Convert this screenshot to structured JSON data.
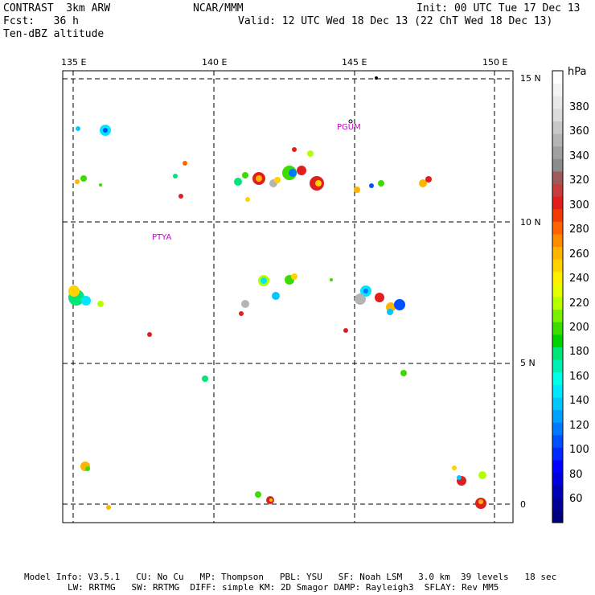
{
  "header": {
    "left_line1": "CONTRAST  3km ARW",
    "left_line2": "Fcst:   36 h",
    "left_line3": "Ten-dBZ altitude",
    "center_line1": "NCAR/MMM",
    "init_text": "Init: 00 UTC Tue 17 Dec 13",
    "valid_text": "Valid: 12 UTC Wed 18 Dec 13 (22 ChT Wed 18 Dec 13)"
  },
  "axes": {
    "lon_ticks": [
      "135 E",
      "140 E",
      "145 E",
      "150 E"
    ],
    "lat_ticks": [
      "15 N",
      "10 N",
      "5 N",
      "0"
    ]
  },
  "places": [
    {
      "name": "PGUM"
    },
    {
      "name": "PTYA"
    }
  ],
  "colorbar": {
    "unit": "hPa",
    "labels": [
      "380",
      "360",
      "340",
      "320",
      "300",
      "280",
      "260",
      "240",
      "220",
      "200",
      "180",
      "160",
      "140",
      "120",
      "100",
      "80",
      "60"
    ],
    "colors": [
      "#ffffff",
      "#f4f4f4",
      "#e8e8e8",
      "#dcdcdc",
      "#c8c8c8",
      "#b4b4b4",
      "#a0a0a0",
      "#8c8c8c",
      "#a05a5a",
      "#c83c3c",
      "#e01e1e",
      "#f03c00",
      "#ff6400",
      "#ff8c00",
      "#ffb400",
      "#ffd200",
      "#fff000",
      "#e6ff00",
      "#b4ff00",
      "#78f000",
      "#3cdc00",
      "#00d200",
      "#00e678",
      "#00f0b4",
      "#00ffe6",
      "#00e6ff",
      "#00c8ff",
      "#00a0ff",
      "#0078ff",
      "#0050ff",
      "#0028ff",
      "#0000ff",
      "#0000dc",
      "#0000b4",
      "#000096",
      "#00007d"
    ]
  },
  "footer": {
    "line1": "Model Info: V3.5.1   CU: No Cu   MP: Thompson   PBL: YSU   SF: Noah LSM   3.0 km  39 levels   18 sec",
    "line2": "LW: RRTMG   SW: RRTMG  DIFF: simple KM: 2D Smagor DAMP: Rayleigh3  SFLAY: Rev MM5"
  }
}
